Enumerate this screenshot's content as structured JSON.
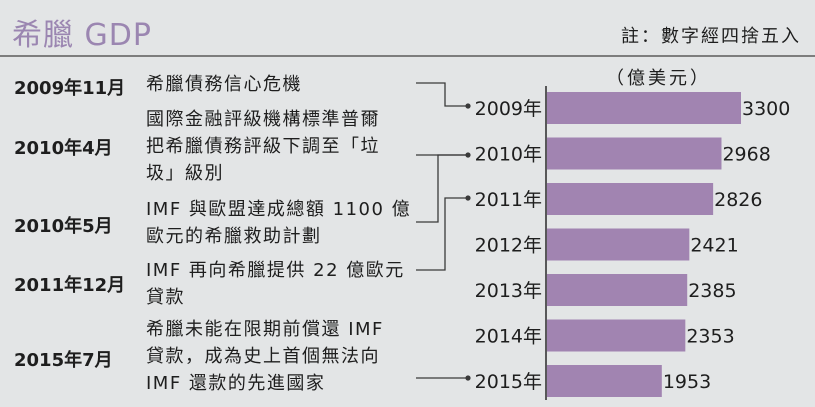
{
  "header": {
    "title": "希臘 GDP",
    "note": "註：數字經四捨五入"
  },
  "timeline": [
    {
      "date": "2009年11月",
      "event": "希臘債務信心危機"
    },
    {
      "date": "2010年4月",
      "event": "國際金融評級機構標準普爾\n把希臘債務評級下調至「垃\n圾」級別"
    },
    {
      "date": "2010年5月",
      "event": "IMF 與歐盟達成總額 1100 億\n歐元的希臘救助計劃"
    },
    {
      "date": "2011年12月",
      "event": "IMF 再向希臘提供 22 億歐元\n貸款"
    },
    {
      "date": "2015年7月",
      "event": "希臘未能在限期前償還 IMF\n貸款，成為史上首個無法向\nIMF 還款的先進國家"
    }
  ],
  "chart_data": {
    "type": "bar",
    "orientation": "horizontal",
    "unit": "（億美元）",
    "categories": [
      "2009年",
      "2010年",
      "2011年",
      "2012年",
      "2013年",
      "2014年",
      "2015年"
    ],
    "values": [
      3300,
      2968,
      2826,
      2421,
      2385,
      2353,
      1953
    ],
    "bar_color": "#a184b1"
  }
}
